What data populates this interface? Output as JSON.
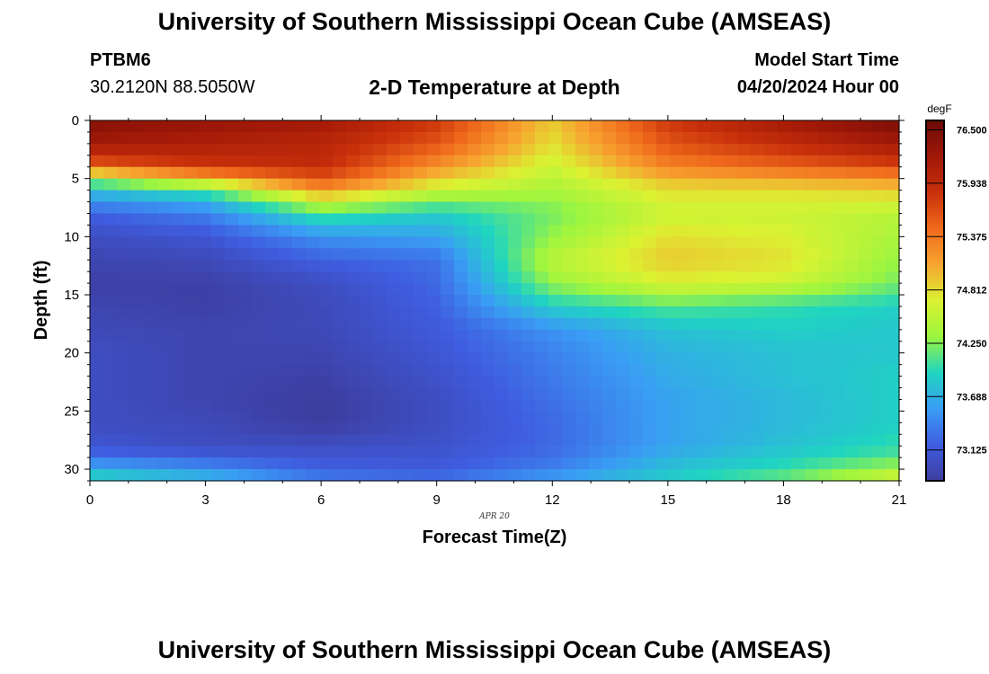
{
  "header": {
    "title": "University of Southern Mississippi Ocean Cube (AMSEAS)",
    "station": "PTBM6",
    "coords": "30.2120N  88.5050W",
    "subtitle": "2-D Temperature at Depth",
    "start_label": "Model Start Time",
    "start_date": "04/20/2024 Hour 00"
  },
  "footer": {
    "title": "University of Southern Mississippi Ocean Cube (AMSEAS)"
  },
  "chart_data": {
    "type": "heatmap",
    "title": "2-D Temperature at Depth",
    "xlabel": "Forecast Time(Z)",
    "ylabel": "Depth (ft)",
    "date_note": "APR 20",
    "x_range": [
      0,
      21
    ],
    "y_range": [
      0,
      31
    ],
    "x_ticks": [
      0,
      3,
      6,
      9,
      12,
      15,
      18,
      21
    ],
    "y_ticks": [
      0,
      5,
      10,
      15,
      20,
      25,
      30
    ],
    "colorbar": {
      "units": "degF",
      "min": 72.8,
      "max": 76.6,
      "ticks": [
        "76.500",
        "75.938",
        "75.375",
        "74.812",
        "74.250",
        "73.688",
        "73.125"
      ],
      "colors": [
        "#3d3d9e",
        "#3f5de0",
        "#3a9df5",
        "#1fd5c0",
        "#9cf53f",
        "#dbf232",
        "#f7a530",
        "#f06a1c",
        "#c8300a",
        "#a01808",
        "#6a0a05"
      ]
    },
    "series_description": "Temperature field (degF) by forecast hour (x) and depth in feet (y)",
    "x_nodes": [
      0,
      3,
      6,
      9,
      12,
      15,
      18,
      21
    ],
    "depth_nodes": [
      0,
      2,
      4,
      5,
      6,
      7,
      8,
      10,
      12,
      14,
      16,
      18,
      20,
      22,
      24,
      26,
      28,
      29,
      30,
      31
    ],
    "values": [
      [
        76.4,
        76.3,
        76.2,
        75.8,
        74.9,
        75.8,
        76.2,
        76.5
      ],
      [
        76.2,
        76.1,
        76.0,
        75.6,
        74.8,
        75.6,
        75.9,
        76.2
      ],
      [
        75.5,
        75.8,
        75.9,
        75.2,
        74.6,
        75.3,
        75.5,
        75.7
      ],
      [
        74.3,
        75.0,
        75.6,
        74.9,
        74.5,
        75.0,
        75.1,
        75.2
      ],
      [
        73.8,
        74.1,
        75.2,
        74.6,
        74.4,
        74.8,
        74.8,
        74.9
      ],
      [
        73.5,
        73.7,
        74.6,
        74.2,
        74.3,
        74.7,
        74.7,
        74.7
      ],
      [
        73.2,
        73.4,
        74.1,
        73.9,
        74.2,
        74.6,
        74.6,
        74.5
      ],
      [
        73.0,
        73.1,
        73.5,
        73.6,
        74.3,
        74.8,
        74.7,
        74.4
      ],
      [
        72.9,
        72.95,
        73.2,
        73.3,
        74.5,
        74.9,
        74.8,
        74.3
      ],
      [
        72.85,
        72.85,
        73.0,
        73.25,
        74.3,
        74.7,
        74.6,
        74.2
      ],
      [
        72.9,
        72.85,
        72.95,
        73.2,
        73.9,
        74.1,
        74.0,
        73.9
      ],
      [
        72.95,
        72.9,
        72.95,
        73.15,
        73.5,
        73.8,
        73.9,
        73.85
      ],
      [
        73.0,
        72.9,
        72.9,
        73.1,
        73.4,
        73.7,
        73.8,
        73.85
      ],
      [
        73.0,
        72.9,
        72.85,
        73.05,
        73.35,
        73.65,
        73.8,
        73.9
      ],
      [
        73.0,
        72.9,
        72.8,
        73.0,
        73.3,
        73.6,
        73.75,
        73.9
      ],
      [
        73.0,
        72.95,
        72.8,
        73.0,
        73.25,
        73.6,
        73.75,
        73.9
      ],
      [
        73.1,
        73.0,
        73.0,
        73.05,
        73.25,
        73.6,
        73.8,
        74.0
      ],
      [
        73.3,
        73.2,
        73.1,
        73.1,
        73.3,
        73.7,
        73.9,
        74.1
      ],
      [
        73.7,
        73.5,
        73.2,
        73.15,
        73.4,
        73.8,
        74.0,
        74.4
      ],
      [
        74.0,
        73.8,
        73.4,
        73.3,
        73.6,
        73.9,
        74.2,
        74.7
      ]
    ]
  }
}
